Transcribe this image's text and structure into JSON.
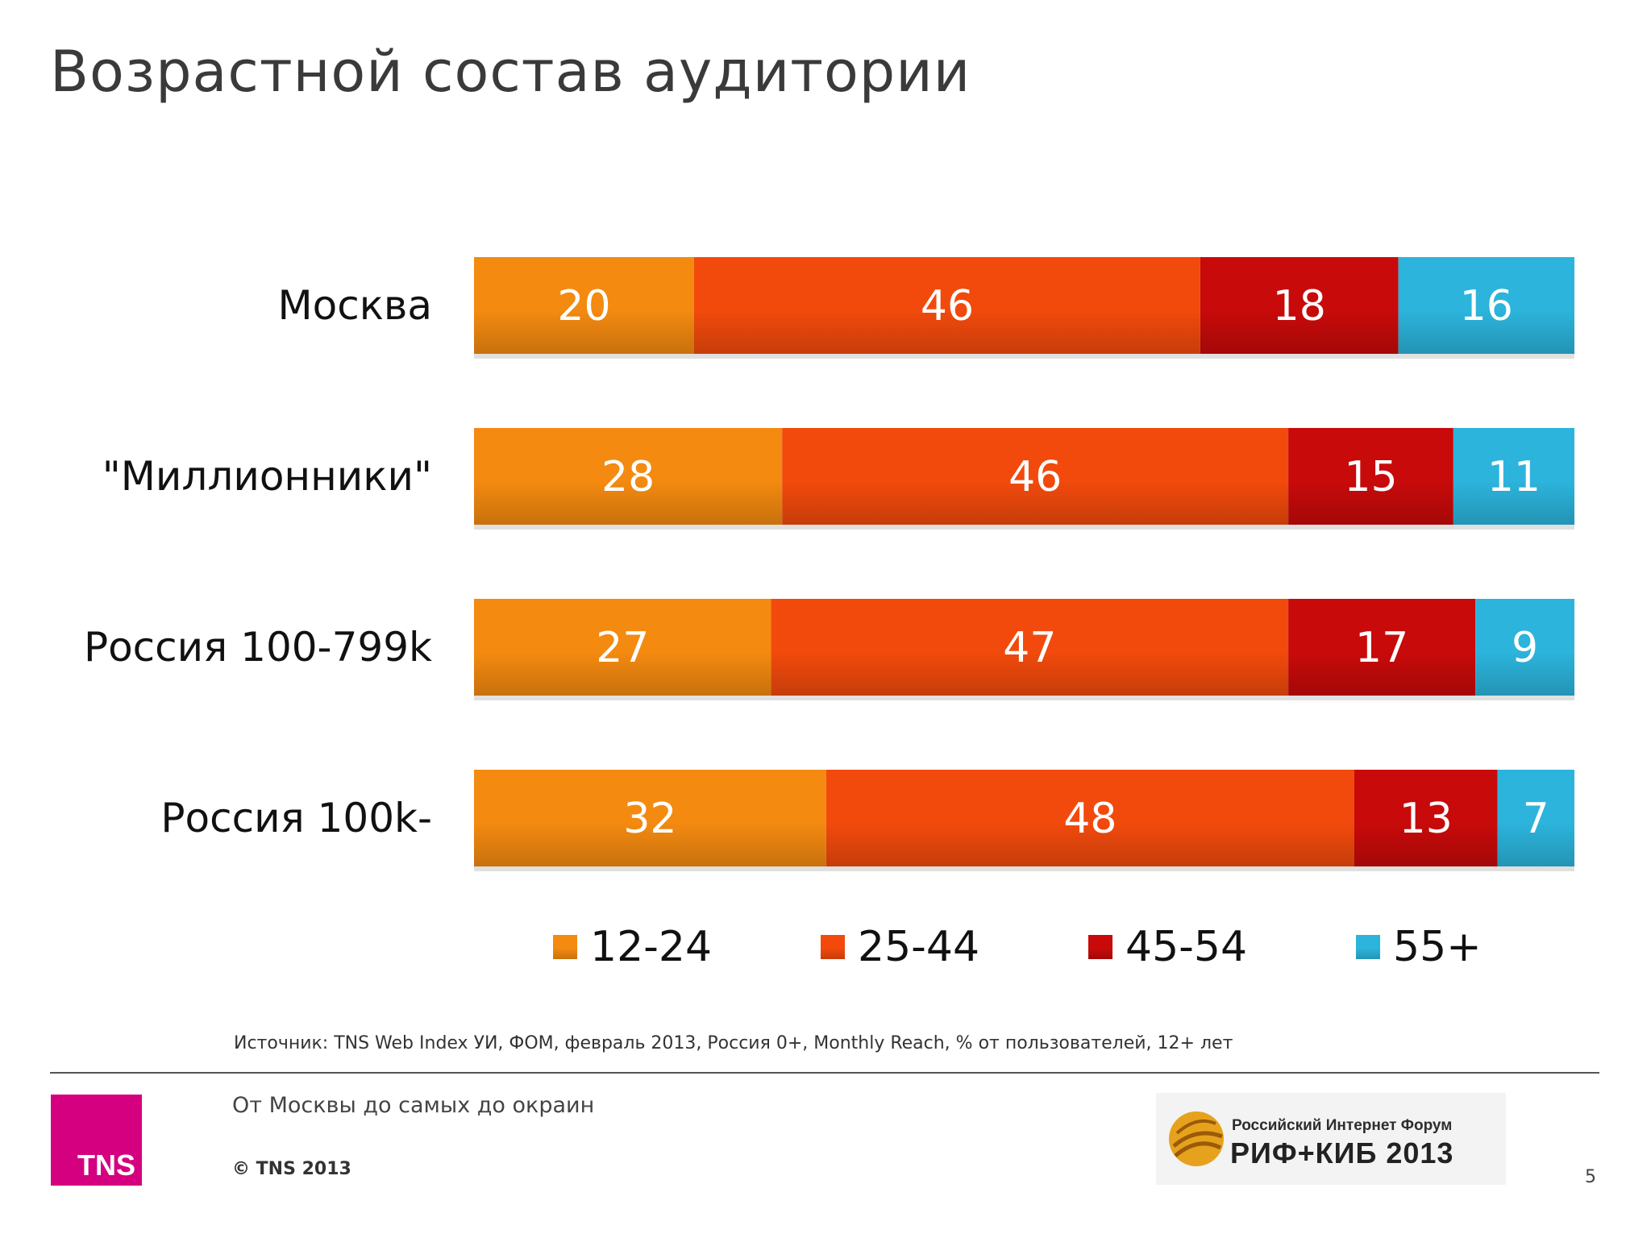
{
  "title": "Возрастной состав аудитории",
  "chart_data": {
    "type": "bar",
    "orientation": "horizontal",
    "stacked": true,
    "categories": [
      "Москва",
      "\"Миллионники\"",
      "Россия 100-799k",
      "Россия 100k-"
    ],
    "series": [
      {
        "name": "12-24",
        "color": "#f48a10",
        "values": [
          20,
          28,
          27,
          32
        ]
      },
      {
        "name": "25-44",
        "color": "#f24a0c",
        "values": [
          46,
          46,
          47,
          48
        ]
      },
      {
        "name": "45-54",
        "color": "#c80a0a",
        "values": [
          18,
          15,
          17,
          13
        ]
      },
      {
        "name": "55+",
        "color": "#2cb4dc",
        "values": [
          16,
          11,
          9,
          7
        ]
      }
    ],
    "xlim": [
      0,
      100
    ],
    "grid": false,
    "legend": "bottom",
    "data_labels": true
  },
  "source": "Источник: TNS Web Index УИ, ФОМ, февраль 2013, Россия 0+, Monthly Reach, % от пользователей, 12+ лет",
  "footer": {
    "tagline": "От Москвы до самых до окраин",
    "copyright": "© TNS 2013",
    "tns_logo": "TNS",
    "forum_line1": "Российский Интернет Форум",
    "forum_line2": "РИФ+КИБ 2013",
    "page_number": "5"
  }
}
